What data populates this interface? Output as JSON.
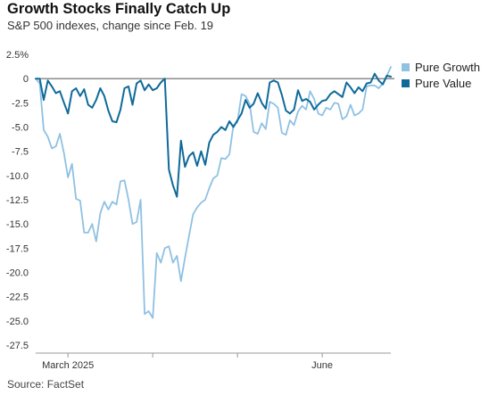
{
  "header": {
    "title": "Growth Stocks Finally Catch Up",
    "subtitle": "S&P 500 indexes, change since Feb. 19"
  },
  "footer": {
    "source": "Source: FactSet"
  },
  "colors": {
    "growth": "#8fc1e3",
    "value": "#0f6a9a",
    "zero": "#666666",
    "grid": "#dddddd",
    "axis": "#999999"
  },
  "chart_data": {
    "type": "line",
    "title": "Growth Stocks Finally Catch Up",
    "subtitle": "S&P 500 indexes, change since Feb. 19",
    "xlabel": "",
    "ylabel": "",
    "ylim": [
      -27.5,
      2.5
    ],
    "yticks": [
      2.5,
      0,
      -2.5,
      -5.0,
      -7.5,
      -10.0,
      -12.5,
      -15.0,
      -17.5,
      -20.0,
      -22.5,
      -25.0,
      -27.5
    ],
    "ytick_labels": [
      "2.5%",
      "0",
      "-2.5",
      "-5.0",
      "-7.5",
      "-10.0",
      "-12.5",
      "-15.0",
      "-17.5",
      "-20.0",
      "-22.5",
      "-25.0",
      "-27.5"
    ],
    "xlim": [
      0,
      88
    ],
    "xticks": [
      {
        "x": 8,
        "label": "March 2025"
      },
      {
        "x": 29,
        "label": ""
      },
      {
        "x": 50,
        "label": ""
      },
      {
        "x": 71,
        "label": "June"
      }
    ],
    "grid": false,
    "legend_position": "right",
    "series": [
      {
        "name": "Pure Growth",
        "color": "#8fc1e3",
        "x": [
          0,
          1,
          2,
          3,
          4,
          5,
          6,
          7,
          8,
          9,
          10,
          11,
          12,
          13,
          14,
          15,
          16,
          17,
          18,
          19,
          20,
          21,
          22,
          23,
          24,
          25,
          26,
          27,
          28,
          29,
          30,
          31,
          32,
          33,
          34,
          35,
          36,
          37,
          38,
          39,
          40,
          41,
          42,
          43,
          44,
          45,
          46,
          47,
          48,
          49,
          50,
          51,
          52,
          53,
          54,
          55,
          56,
          57,
          58,
          59,
          60,
          61,
          62,
          63,
          64,
          65,
          66,
          67,
          68,
          69,
          70,
          71,
          72,
          73,
          74,
          75,
          76,
          77,
          78,
          79,
          80,
          81,
          82,
          83,
          84,
          85,
          86,
          87,
          88
        ],
        "y": [
          0.0,
          -0.5,
          -5.3,
          -6.0,
          -7.2,
          -7.0,
          -5.7,
          -7.7,
          -10.2,
          -8.8,
          -12.4,
          -12.6,
          -15.9,
          -15.9,
          -15.0,
          -16.8,
          -13.9,
          -12.7,
          -13.5,
          -12.7,
          -13.0,
          -10.6,
          -10.5,
          -12.5,
          -15.0,
          -14.8,
          -12.5,
          -24.3,
          -24.0,
          -24.7,
          -18.0,
          -19.0,
          -17.5,
          -17.3,
          -19.0,
          -18.3,
          -20.9,
          -18.5,
          -16.2,
          -14.0,
          -13.3,
          -12.8,
          -12.5,
          -11.3,
          -10.3,
          -10.0,
          -8.2,
          -8.3,
          -7.8,
          -4.8,
          -4.5,
          -1.6,
          -1.8,
          -2.6,
          -5.5,
          -5.7,
          -4.6,
          -5.2,
          -2.4,
          -2.6,
          -3.0,
          -5.6,
          -5.8,
          -4.3,
          -4.8,
          -3.4,
          -2.8,
          -3.2,
          -1.3,
          -2.1,
          -3.6,
          -3.8,
          -3.0,
          -3.2,
          -2.5,
          -2.6,
          -4.2,
          -3.9,
          -2.7,
          -3.8,
          -3.6,
          -3.2,
          -0.8,
          -0.7,
          -0.7,
          -1.0,
          -0.5,
          0.3,
          1.2
        ]
      },
      {
        "name": "Pure Value",
        "color": "#0f6a9a",
        "x": [
          0,
          1,
          2,
          3,
          4,
          5,
          6,
          7,
          8,
          9,
          10,
          11,
          12,
          13,
          14,
          15,
          16,
          17,
          18,
          19,
          20,
          21,
          22,
          23,
          24,
          25,
          26,
          27,
          28,
          29,
          30,
          31,
          32,
          33,
          34,
          35,
          36,
          37,
          38,
          39,
          40,
          41,
          42,
          43,
          44,
          45,
          46,
          47,
          48,
          49,
          50,
          51,
          52,
          53,
          54,
          55,
          56,
          57,
          58,
          59,
          60,
          61,
          62,
          63,
          64,
          65,
          66,
          67,
          68,
          69,
          70,
          71,
          72,
          73,
          74,
          75,
          76,
          77,
          78,
          79,
          80,
          81,
          82,
          83,
          84,
          85,
          86,
          87,
          88
        ],
        "y": [
          0.0,
          0.0,
          -2.2,
          -0.2,
          -0.8,
          -1.5,
          -1.3,
          -2.5,
          -3.6,
          -1.3,
          -1.0,
          -1.8,
          -1.1,
          -2.7,
          -3.0,
          -2.2,
          -1.0,
          -1.8,
          -3.3,
          -4.4,
          -4.5,
          -3.2,
          -1.0,
          -0.8,
          -2.7,
          -0.5,
          -0.2,
          -1.2,
          -0.6,
          -1.2,
          -1.0,
          -0.4,
          0.0,
          -9.4,
          -11.0,
          -12.2,
          -6.4,
          -9.1,
          -8.0,
          -7.6,
          -9.0,
          -7.5,
          -8.9,
          -6.6,
          -5.8,
          -5.5,
          -5.0,
          -5.3,
          -4.4,
          -5.0,
          -4.3,
          -3.6,
          -2.2,
          -3.0,
          -2.6,
          -1.5,
          -2.5,
          -3.1,
          -0.4,
          -0.2,
          -0.4,
          -1.7,
          -3.3,
          -3.6,
          -3.2,
          -1.2,
          -2.3,
          -2.1,
          -2.4,
          -3.2,
          -2.7,
          -2.3,
          -2.2,
          -1.6,
          -1.3,
          -1.6,
          -1.9,
          -0.4,
          -0.9,
          -1.5,
          -0.9,
          -1.3,
          -0.5,
          -0.4,
          0.5,
          -0.2,
          -0.6,
          0.3,
          0.2
        ]
      }
    ]
  }
}
